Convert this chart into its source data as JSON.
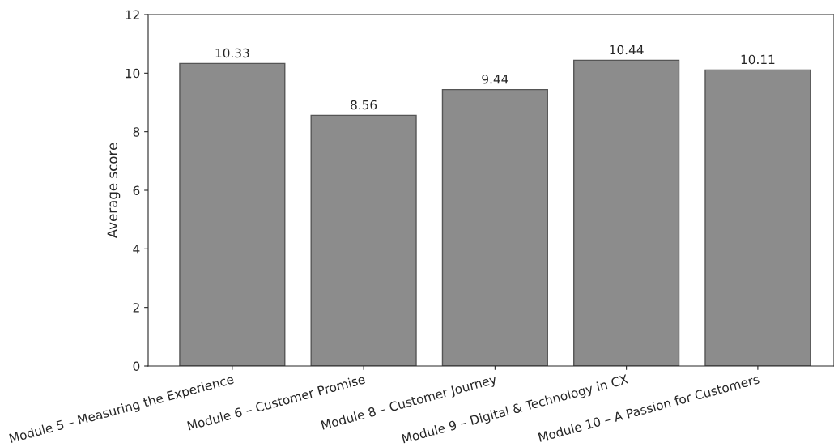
{
  "chart_data": {
    "type": "bar",
    "ylabel": "Average score",
    "categories": [
      "Module 5 – Measuring the Experience",
      "Module 6 – Customer Promise",
      "Module 8 – Customer Journey",
      "Module 9 – Digital & Technology in CX",
      "Module 10 – A Passion for Customers"
    ],
    "values": [
      10.33,
      8.56,
      9.44,
      10.44,
      10.11
    ],
    "color": "#8c8c8c",
    "ylim": [
      0,
      12
    ],
    "yticks": [
      0,
      2,
      4,
      6,
      8,
      10,
      12
    ],
    "data_labels": true,
    "grid": false
  }
}
